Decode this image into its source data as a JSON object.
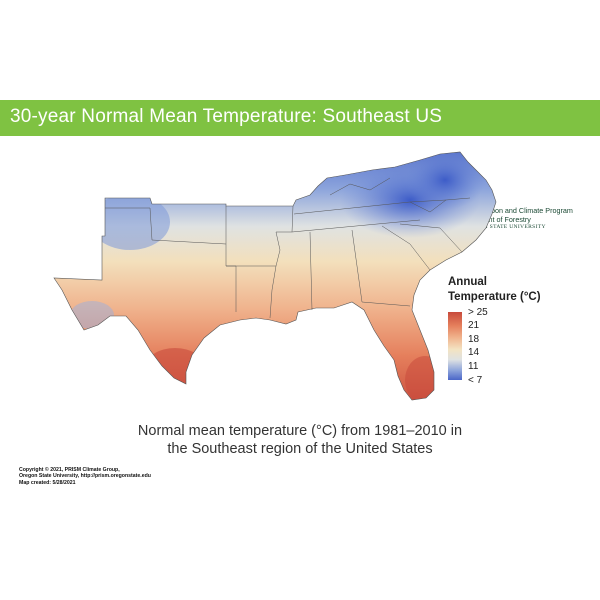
{
  "banner": {
    "title": "30-year Normal Mean Temperature: Southeast US",
    "color": "#7fc242"
  },
  "logo": {
    "icon": "spartan-helmet-icon",
    "line1": "Forest Carbon and Climate Program",
    "line2": "Department of Forestry",
    "line3": "MICHIGAN STATE UNIVERSITY",
    "color": "#1c4a35"
  },
  "legend": {
    "title_line1": "Annual",
    "title_line2": "Temperature (°C)",
    "labels": [
      "> 25",
      "21",
      "18",
      "14",
      "11",
      "< 7"
    ],
    "colors": [
      "#c84a3c",
      "#e57f5c",
      "#f0b48e",
      "#f3e3c2",
      "#92a8dc",
      "#4a66c8"
    ]
  },
  "caption": {
    "line1": "Normal mean temperature (°C) from 1981–2010 in",
    "line2": "the Southeast region of the United States"
  },
  "copyright": {
    "line1": "Copyright © 2021, PRISM Climate Group,",
    "line2": "Oregon State University, http://prism.oregonstate.edu",
    "line3": "Map created: 5/28/2021"
  }
}
